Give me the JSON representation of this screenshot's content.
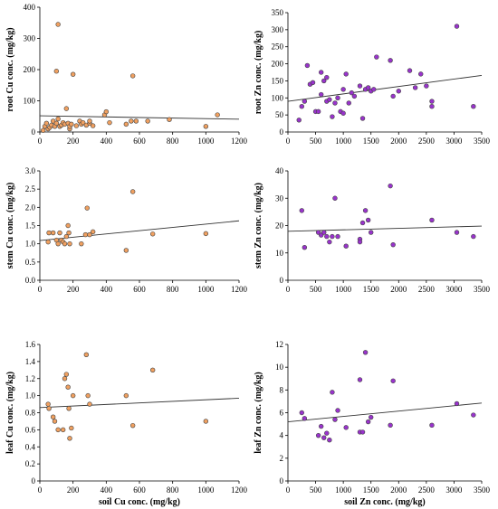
{
  "chart_data": [
    {
      "id": "root-cu",
      "type": "scatter",
      "xlabel": "",
      "ylabel": "root Cu conc. (mg/kg)",
      "xlim": [
        0,
        1200
      ],
      "ylim": [
        0,
        400
      ],
      "xticks": [
        "0",
        "200",
        "400",
        "600",
        "800",
        "1000",
        "1200"
      ],
      "yticks": [
        "0",
        "100",
        "200",
        "300",
        "400"
      ],
      "marker_color": "#f0a060",
      "x": [
        20,
        30,
        40,
        50,
        60,
        70,
        80,
        90,
        100,
        100,
        110,
        110,
        120,
        130,
        140,
        150,
        160,
        170,
        180,
        180,
        190,
        200,
        220,
        240,
        250,
        260,
        280,
        300,
        300,
        320,
        390,
        400,
        420,
        520,
        550,
        560,
        580,
        650,
        780,
        1000,
        1070
      ],
      "y": [
        5,
        18,
        28,
        10,
        15,
        22,
        35,
        18,
        195,
        28,
        345,
        42,
        18,
        22,
        30,
        25,
        75,
        28,
        10,
        18,
        25,
        185,
        20,
        35,
        25,
        30,
        22,
        28,
        35,
        20,
        55,
        65,
        30,
        25,
        35,
        180,
        35,
        35,
        40,
        18,
        55
      ],
      "trend": {
        "x": [
          0,
          1200
        ],
        "y": [
          52,
          41
        ]
      }
    },
    {
      "id": "root-zn",
      "type": "scatter",
      "xlabel": "",
      "ylabel": "root Zn conc. (mg/kg)",
      "xlim": [
        0,
        3500
      ],
      "ylim": [
        0,
        350
      ],
      "xticks": [
        "0",
        "500",
        "1000",
        "1500",
        "2000",
        "2500",
        "3000",
        "3500"
      ],
      "yticks": [
        "0",
        "50",
        "100",
        "150",
        "200",
        "250",
        "300",
        "350"
      ],
      "marker_color": "#9933cc",
      "x": [
        200,
        250,
        300,
        350,
        400,
        450,
        500,
        550,
        600,
        600,
        650,
        700,
        700,
        750,
        800,
        850,
        900,
        950,
        1000,
        1000,
        1050,
        1100,
        1150,
        1200,
        1300,
        1350,
        1400,
        1450,
        1500,
        1550,
        1600,
        1850,
        1900,
        2000,
        2200,
        2300,
        2400,
        2500,
        2600,
        2600,
        3050,
        3350
      ],
      "y": [
        35,
        75,
        90,
        195,
        140,
        145,
        60,
        60,
        175,
        110,
        150,
        90,
        160,
        95,
        45,
        85,
        100,
        60,
        55,
        125,
        170,
        85,
        115,
        105,
        135,
        40,
        125,
        130,
        120,
        125,
        220,
        210,
        105,
        120,
        180,
        130,
        170,
        135,
        90,
        75,
        310,
        75
      ],
      "trend": {
        "x": [
          0,
          3500
        ],
        "y": [
          90,
          166
        ]
      }
    },
    {
      "id": "stem-cu",
      "type": "scatter",
      "xlabel": "",
      "ylabel": "stem Cu conc. (mg/kg)",
      "xlim": [
        0,
        1200
      ],
      "ylim": [
        0,
        3.0
      ],
      "xticks": [
        "0",
        "200",
        "400",
        "600",
        "800",
        "1000",
        "1200"
      ],
      "yticks": [
        "0.0",
        "0.5",
        "1.0",
        "1.5",
        "2.0",
        "2.5",
        "3.0"
      ],
      "marker_color": "#f0a060",
      "x": [
        50,
        55,
        80,
        100,
        110,
        120,
        130,
        140,
        150,
        160,
        170,
        175,
        180,
        250,
        275,
        285,
        300,
        320,
        520,
        560,
        680,
        1000
      ],
      "y": [
        1.05,
        1.3,
        1.3,
        1.1,
        1.0,
        1.3,
        1.1,
        1.05,
        1.0,
        1.2,
        1.5,
        1.3,
        1.0,
        1.0,
        1.25,
        1.98,
        1.25,
        1.33,
        0.82,
        2.43,
        1.27,
        1.28
      ],
      "trend": {
        "x": [
          0,
          1200
        ],
        "y": [
          1.09,
          1.63
        ]
      }
    },
    {
      "id": "stem-zn",
      "type": "scatter",
      "xlabel": "",
      "ylabel": "stem Zn conc. (mg/kg)",
      "xlim": [
        0,
        3500
      ],
      "ylim": [
        0,
        40
      ],
      "xticks": [
        "0",
        "500",
        "1000",
        "1500",
        "2000",
        "2500",
        "3000",
        "3500"
      ],
      "yticks": [
        "0",
        "10",
        "20",
        "30",
        "40"
      ],
      "marker_color": "#9933cc",
      "x": [
        250,
        300,
        550,
        600,
        650,
        700,
        750,
        800,
        850,
        900,
        1050,
        1300,
        1300,
        1350,
        1400,
        1450,
        1500,
        1850,
        1900,
        2600,
        3050,
        3350
      ],
      "y": [
        25.5,
        12,
        17.5,
        16.5,
        17.5,
        16,
        14,
        16,
        30,
        16,
        12.5,
        15,
        14,
        21,
        25.5,
        22,
        17.5,
        34.5,
        13,
        22,
        17.5,
        16
      ],
      "trend": {
        "x": [
          0,
          3500
        ],
        "y": [
          17.9,
          19.8
        ]
      }
    },
    {
      "id": "leaf-cu",
      "type": "scatter",
      "xlabel": "soil Cu conc. (mg/kg)",
      "ylabel": "leaf Cu conc. (mg/kg)",
      "xlim": [
        0,
        1200
      ],
      "ylim": [
        0,
        1.6
      ],
      "xticks": [
        "0",
        "200",
        "400",
        "600",
        "800",
        "1000",
        "1200"
      ],
      "yticks": [
        "0",
        "0.2",
        "0.4",
        "0.6",
        "0.8",
        "1.0",
        "1.2",
        "1.4",
        "1.6"
      ],
      "marker_color": "#f0a060",
      "x": [
        50,
        55,
        80,
        90,
        110,
        140,
        150,
        160,
        170,
        175,
        180,
        190,
        200,
        280,
        290,
        300,
        520,
        560,
        680,
        1000
      ],
      "y": [
        0.9,
        0.85,
        0.75,
        0.7,
        0.6,
        0.6,
        1.2,
        1.25,
        1.1,
        0.85,
        0.5,
        0.62,
        1.0,
        1.48,
        1.0,
        0.9,
        1.0,
        0.65,
        1.3,
        0.7
      ],
      "trend": {
        "x": [
          0,
          1200
        ],
        "y": [
          0.86,
          0.97
        ]
      }
    },
    {
      "id": "leaf-zn",
      "type": "scatter",
      "xlabel": "soil Zn conc. (mg/kg)",
      "ylabel": "leaf Zn conc. (mg/kg)",
      "xlim": [
        0,
        3500
      ],
      "ylim": [
        0,
        12
      ],
      "xticks": [
        "0",
        "500",
        "1000",
        "1500",
        "2000",
        "2500",
        "3000",
        "3500"
      ],
      "yticks": [
        "0",
        "2",
        "4",
        "6",
        "8",
        "10",
        "12"
      ],
      "marker_color": "#9933cc",
      "x": [
        250,
        300,
        550,
        600,
        650,
        700,
        750,
        800,
        850,
        900,
        1050,
        1300,
        1300,
        1350,
        1400,
        1450,
        1500,
        1850,
        1900,
        2600,
        3050,
        3350
      ],
      "y": [
        6,
        5.5,
        4,
        4.8,
        3.8,
        4.2,
        3.6,
        7.8,
        5.4,
        6.2,
        4.7,
        8.9,
        4.3,
        4.3,
        11.3,
        5.2,
        5.6,
        4.9,
        8.8,
        4.9,
        6.8,
        5.8
      ],
      "trend": {
        "x": [
          0,
          3500
        ],
        "y": [
          5.2,
          6.85
        ]
      }
    }
  ]
}
